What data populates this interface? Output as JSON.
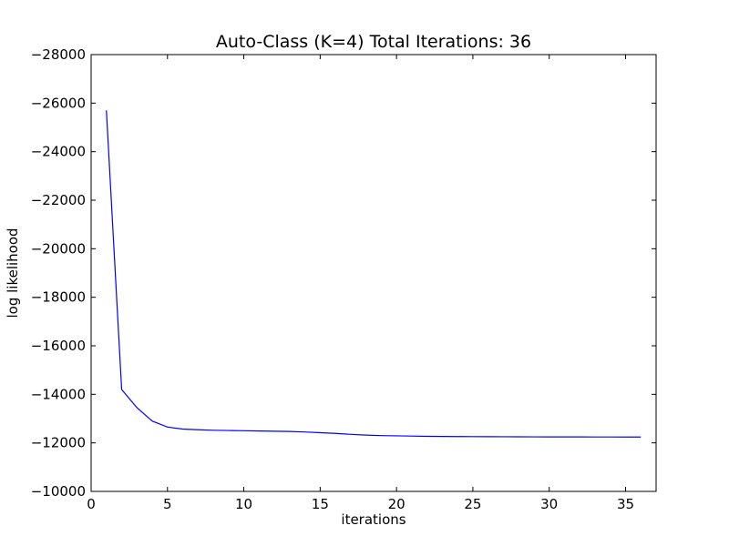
{
  "chart_data": {
    "type": "line",
    "title": "Auto-Class (K=4) Total Iterations: 36",
    "xlabel": "iterations",
    "ylabel": "log likelihood",
    "xlim": [
      0,
      37
    ],
    "ylim": [
      -10000,
      -28000
    ],
    "y_inverted": true,
    "grid": false,
    "x_ticks": [
      0,
      5,
      10,
      15,
      20,
      25,
      30,
      35
    ],
    "x_tick_labels": [
      "0",
      "5",
      "10",
      "15",
      "20",
      "25",
      "30",
      "35"
    ],
    "y_ticks": [
      -28000,
      -26000,
      -24000,
      -22000,
      -20000,
      -18000,
      -16000,
      -14000,
      -12000,
      -10000
    ],
    "y_tick_labels": [
      "−28000",
      "−26000",
      "−24000",
      "−22000",
      "−20000",
      "−18000",
      "−16000",
      "−14000",
      "−12000",
      "−10000"
    ],
    "series": [
      {
        "color": "#0000ff",
        "x": [
          1,
          2,
          3,
          4,
          5,
          6,
          7,
          8,
          9,
          10,
          11,
          12,
          13,
          14,
          15,
          16,
          17,
          18,
          19,
          20,
          21,
          22,
          23,
          24,
          25,
          26,
          27,
          28,
          29,
          30,
          31,
          32,
          33,
          34,
          35,
          36
        ],
        "y": [
          -25700,
          -14200,
          -13450,
          -12900,
          -12650,
          -12570,
          -12540,
          -12520,
          -12510,
          -12500,
          -12490,
          -12480,
          -12470,
          -12450,
          -12420,
          -12390,
          -12350,
          -12320,
          -12300,
          -12290,
          -12280,
          -12270,
          -12265,
          -12260,
          -12258,
          -12255,
          -12252,
          -12250,
          -12248,
          -12246,
          -12245,
          -12244,
          -12243,
          -12242,
          -12241,
          -12240
        ]
      }
    ]
  }
}
